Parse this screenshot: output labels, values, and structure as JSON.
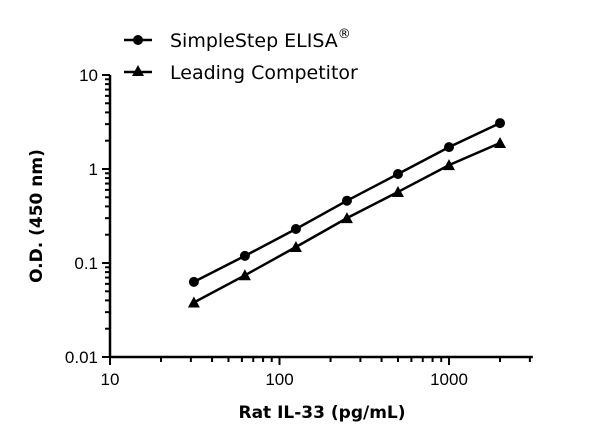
{
  "chart_data": {
    "type": "line",
    "xlabel": "Rat IL-33 (pg/mL)",
    "ylabel": "O.D. (450 nm)",
    "xscale": "log",
    "yscale": "log",
    "xlim": [
      10,
      3000
    ],
    "ylim": [
      0.01,
      10
    ],
    "xticks": [
      "10",
      "100",
      "1000"
    ],
    "yticks": [
      "0.01",
      "0.1",
      "1",
      "10"
    ],
    "grid": false,
    "legend": "top-left",
    "x": [
      31.25,
      62.5,
      125,
      250,
      500,
      1000,
      2000
    ],
    "series": [
      {
        "name": "SimpleStep ELISA",
        "name_suffix": "®",
        "marker": "circle",
        "values": [
          0.063,
          0.119,
          0.23,
          0.46,
          0.885,
          1.71,
          3.08
        ]
      },
      {
        "name": "Leading Competitor",
        "marker": "triangle",
        "values": [
          0.038,
          0.074,
          0.148,
          0.3,
          0.57,
          1.1,
          1.89
        ]
      }
    ]
  }
}
